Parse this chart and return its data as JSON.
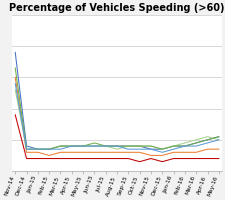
{
  "title": "Percentage of Vehicles Speeding (>60)",
  "x_labels": [
    "Nov-14",
    "Dec-14",
    "Jan-15",
    "Feb-15",
    "Mar-15",
    "Apr-15",
    "May-15",
    "Jun-15",
    "Jul-15",
    "Aug-15",
    "Sep-15",
    "Oct-15",
    "Nov-15",
    "Dec-15",
    "Jan-16",
    "Feb-16",
    "Mar-16",
    "Apr-16",
    "May-16"
  ],
  "series": [
    {
      "color": "#4472c4",
      "values": [
        38,
        8,
        7,
        7,
        8,
        8,
        8,
        8,
        8,
        8,
        8,
        8,
        7,
        7,
        8,
        8,
        9,
        10,
        11
      ]
    },
    {
      "color": "#ed7d31",
      "values": [
        30,
        6,
        6,
        5,
        6,
        6,
        6,
        6,
        6,
        6,
        6,
        6,
        5,
        5,
        6,
        6,
        6,
        7,
        7
      ]
    },
    {
      "color": "#a9d18e",
      "values": [
        26,
        7,
        7,
        7,
        8,
        8,
        8,
        8,
        8,
        7,
        8,
        8,
        8,
        7,
        8,
        9,
        10,
        11,
        10
      ]
    },
    {
      "color": "#70ad47",
      "values": [
        33,
        7,
        7,
        7,
        8,
        8,
        8,
        9,
        8,
        8,
        8,
        8,
        8,
        7,
        8,
        8,
        9,
        10,
        11
      ]
    },
    {
      "color": "#5b9bd5",
      "values": [
        28,
        7,
        7,
        7,
        7,
        8,
        8,
        8,
        8,
        8,
        7,
        7,
        7,
        6,
        7,
        8,
        8,
        9,
        10
      ]
    },
    {
      "color": "#c00000",
      "values": [
        18,
        4,
        4,
        4,
        4,
        4,
        4,
        4,
        4,
        4,
        4,
        3,
        4,
        3,
        4,
        4,
        4,
        4,
        4
      ]
    }
  ],
  "ylim": [
    0,
    50
  ],
  "y_gridlines": [
    0,
    10,
    20,
    30,
    40,
    50
  ],
  "background_color": "#f2f2f2",
  "plot_bg_color": "#ffffff",
  "grid_color": "#c8c8c8",
  "title_fontsize": 7.0,
  "tick_fontsize": 4.2,
  "line_width": 0.75
}
